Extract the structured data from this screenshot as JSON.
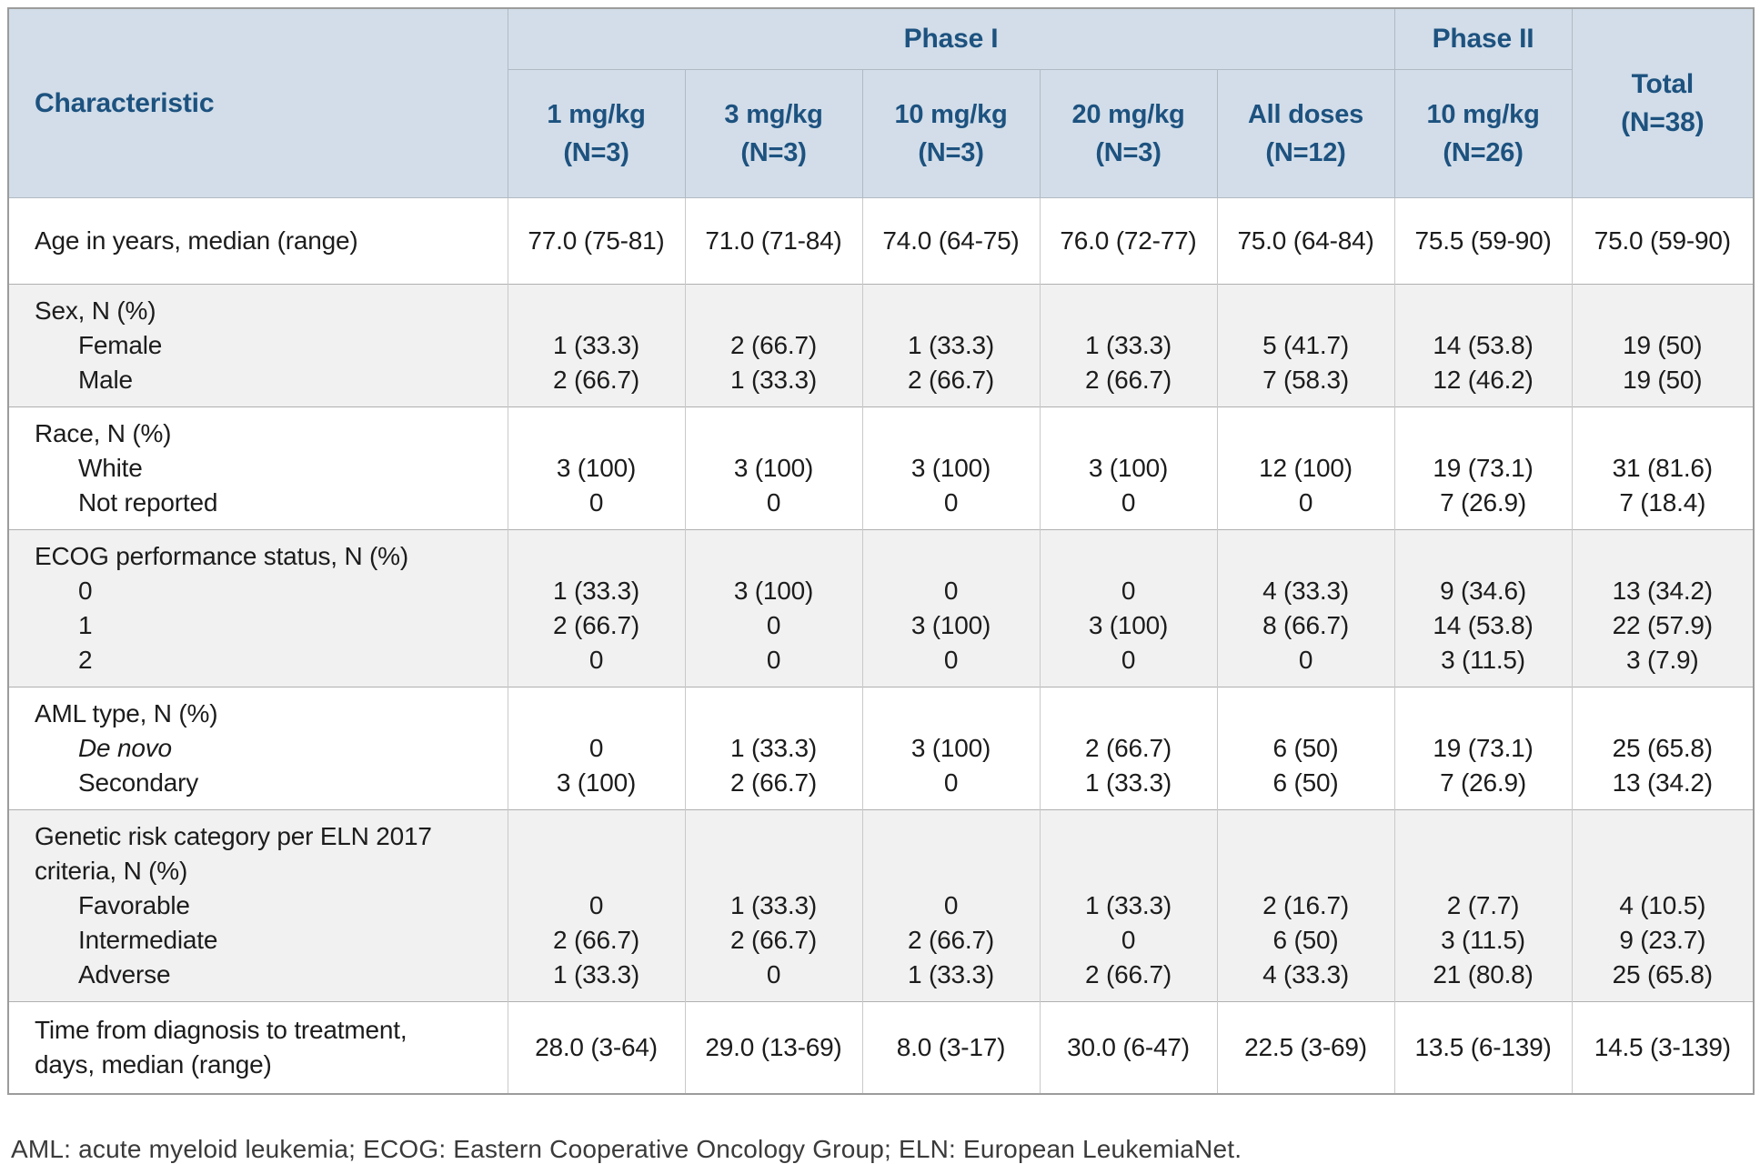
{
  "table": {
    "characteristic_header": "Characteristic",
    "phase1_label": "Phase I",
    "phase2_label": "Phase II",
    "total_label": "Total",
    "total_n": "(N=38)",
    "dose_columns": [
      {
        "dose": "1 mg/kg",
        "n": "(N=3)"
      },
      {
        "dose": "3 mg/kg",
        "n": "(N=3)"
      },
      {
        "dose": "10 mg/kg",
        "n": "(N=3)"
      },
      {
        "dose": "20 mg/kg",
        "n": "(N=3)"
      },
      {
        "dose": "All doses",
        "n": "(N=12)"
      },
      {
        "dose": "10 mg/kg",
        "n": "(N=26)"
      }
    ],
    "rows": [
      {
        "shade": false,
        "label": [
          "Age in years, median (range)"
        ],
        "values": [
          "77.0 (75-81)",
          "71.0 (71-84)",
          "74.0 (64-75)",
          "76.0 (72-77)",
          "75.0 (64-84)",
          "75.5 (59-90)",
          "75.0 (59-90)"
        ]
      },
      {
        "shade": true,
        "label": [
          "Sex, N (%)"
        ],
        "items": [
          {
            "label": "Female",
            "italic": false,
            "values": [
              "1 (33.3)",
              "2 (66.7)",
              "1 (33.3)",
              "1 (33.3)",
              "5 (41.7)",
              "14 (53.8)",
              "19 (50)"
            ]
          },
          {
            "label": "Male",
            "italic": false,
            "values": [
              "2 (66.7)",
              "1 (33.3)",
              "2 (66.7)",
              "2 (66.7)",
              "7 (58.3)",
              "12 (46.2)",
              "19 (50)"
            ]
          }
        ]
      },
      {
        "shade": false,
        "label": [
          "Race, N (%)"
        ],
        "items": [
          {
            "label": "White",
            "italic": false,
            "values": [
              "3 (100)",
              "3 (100)",
              "3 (100)",
              "3 (100)",
              "12 (100)",
              "19 (73.1)",
              "31 (81.6)"
            ]
          },
          {
            "label": "Not reported",
            "italic": false,
            "values": [
              "0",
              "0",
              "0",
              "0",
              "0",
              "7 (26.9)",
              "7 (18.4)"
            ]
          }
        ]
      },
      {
        "shade": true,
        "label": [
          "ECOG performance status, N (%)"
        ],
        "items": [
          {
            "label": "0",
            "italic": false,
            "values": [
              "1 (33.3)",
              "3 (100)",
              "0",
              "0",
              "4 (33.3)",
              "9 (34.6)",
              "13 (34.2)"
            ]
          },
          {
            "label": "1",
            "italic": false,
            "values": [
              "2 (66.7)",
              "0",
              "3 (100)",
              "3 (100)",
              "8 (66.7)",
              "14 (53.8)",
              "22 (57.9)"
            ]
          },
          {
            "label": "2",
            "italic": false,
            "values": [
              "0",
              "0",
              "0",
              "0",
              "0",
              "3 (11.5)",
              "3 (7.9)"
            ]
          }
        ]
      },
      {
        "shade": false,
        "label": [
          "AML type, N (%)"
        ],
        "items": [
          {
            "label": "De novo",
            "italic": true,
            "values": [
              "0",
              "1 (33.3)",
              "3 (100)",
              "2 (66.7)",
              "6 (50)",
              "19 (73.1)",
              "25 (65.8)"
            ]
          },
          {
            "label": "Secondary",
            "italic": false,
            "values": [
              "3 (100)",
              "2 (66.7)",
              "0",
              "1 (33.3)",
              "6 (50)",
              "7 (26.9)",
              "13 (34.2)"
            ]
          }
        ]
      },
      {
        "shade": true,
        "label": [
          "Genetic risk category per ELN 2017",
          "criteria, N (%)"
        ],
        "items": [
          {
            "label": "Favorable",
            "italic": false,
            "values": [
              "0",
              "1 (33.3)",
              "0",
              "1 (33.3)",
              "2 (16.7)",
              "2 (7.7)",
              "4 (10.5)"
            ]
          },
          {
            "label": "Intermediate",
            "italic": false,
            "values": [
              "2 (66.7)",
              "2 (66.7)",
              "2 (66.7)",
              "0",
              "6 (50)",
              "3 (11.5)",
              "9 (23.7)"
            ]
          },
          {
            "label": "Adverse",
            "italic": false,
            "values": [
              "1 (33.3)",
              "0",
              "1 (33.3)",
              "2 (66.7)",
              "4 (33.3)",
              "21 (80.8)",
              "25 (65.8)"
            ]
          }
        ]
      },
      {
        "shade": false,
        "label": [
          "Time from diagnosis to treatment,",
          "days, median (range)"
        ],
        "values": [
          "28.0 (3-64)",
          "29.0 (13-69)",
          "8.0 (3-17)",
          "30.0 (6-47)",
          "22.5 (3-69)",
          "13.5 (6-139)",
          "14.5 (3-139)"
        ]
      }
    ]
  },
  "footnote": "AML: acute myeloid leukemia; ECOG: Eastern Cooperative Oncology Group; ELN: European LeukemiaNet."
}
